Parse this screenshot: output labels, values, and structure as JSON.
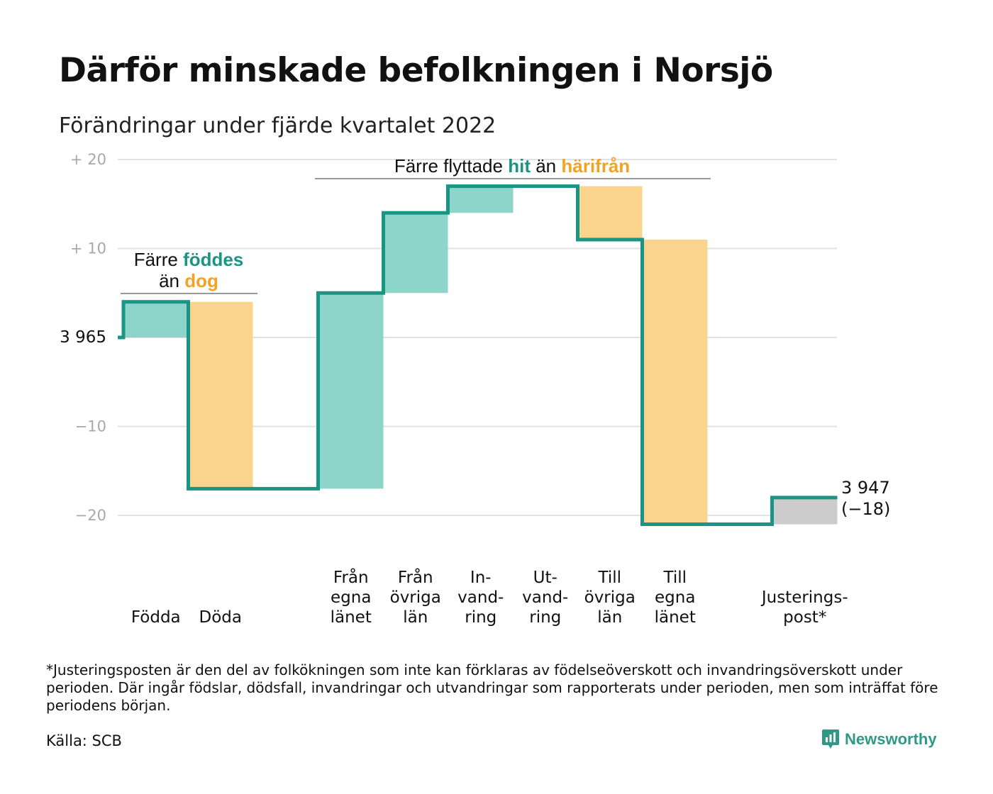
{
  "title": "Därför minskade befolkningen i Norsjö",
  "subtitle": "Förändringar under fjärde kvartalet 2022",
  "colors": {
    "teal": "#1a9583",
    "teal_fill": "#8dd4cb",
    "orange_fill": "#fad48c",
    "orange_text": "#f4a226",
    "gray_fill": "#cccccc",
    "grid": "#e2e2e2"
  },
  "annotations": {
    "births": {
      "line1_a": "Färre ",
      "line1_b": "föddes",
      "line2_a": "än ",
      "line2_b": "dog"
    },
    "moves": {
      "a": "Färre flyttade ",
      "b": "hit",
      "c": " än ",
      "d": "härifrån"
    }
  },
  "start_label": "3 965",
  "end_label": {
    "value": "3 947",
    "change": "(−18)"
  },
  "footnote": "*Justeringsposten är den del av folkökningen som inte kan förklaras av födelseöverskott och invandringsöverskott under perioden. Där ingår födslar, dödsfall, invandringar och utvandringar som rapporterats under perioden, men som inträffat före periodens början.",
  "source": "Källa: SCB",
  "brand": "Newsworthy",
  "chart_data": {
    "type": "bar",
    "baseline": 3965,
    "ylim": [
      -22,
      20
    ],
    "y_ticks": [
      {
        "value": 20,
        "label": "+ 20"
      },
      {
        "value": 10,
        "label": "+ 10"
      },
      {
        "value": 0,
        "label": "3 965"
      },
      {
        "value": -10,
        "label": "−10"
      },
      {
        "value": -20,
        "label": "−20"
      }
    ],
    "categories": [
      {
        "lines": [
          "Födda"
        ],
        "value": 4,
        "kind": "in"
      },
      {
        "lines": [
          "Döda"
        ],
        "value": -21,
        "kind": "out"
      },
      {
        "lines": [],
        "value": 0,
        "kind": "gap"
      },
      {
        "lines": [
          "Från",
          "egna",
          "länet"
        ],
        "value": 22,
        "kind": "in"
      },
      {
        "lines": [
          "Från",
          "övriga",
          "län"
        ],
        "value": 9,
        "kind": "in"
      },
      {
        "lines": [
          "In-",
          "vand-",
          "ring"
        ],
        "value": 3,
        "kind": "in"
      },
      {
        "lines": [
          "Ut-",
          "vand-",
          "ring"
        ],
        "value": 0,
        "kind": "out"
      },
      {
        "lines": [
          "Till",
          "övriga",
          "län"
        ],
        "value": -6,
        "kind": "out"
      },
      {
        "lines": [
          "Till",
          "egna",
          "länet"
        ],
        "value": -32,
        "kind": "out"
      },
      {
        "lines": [],
        "value": 0,
        "kind": "gap"
      },
      {
        "lines": [
          "Justerings-",
          "post*"
        ],
        "value": 3,
        "kind": "adj"
      }
    ],
    "end_value": -18,
    "grid": true
  }
}
